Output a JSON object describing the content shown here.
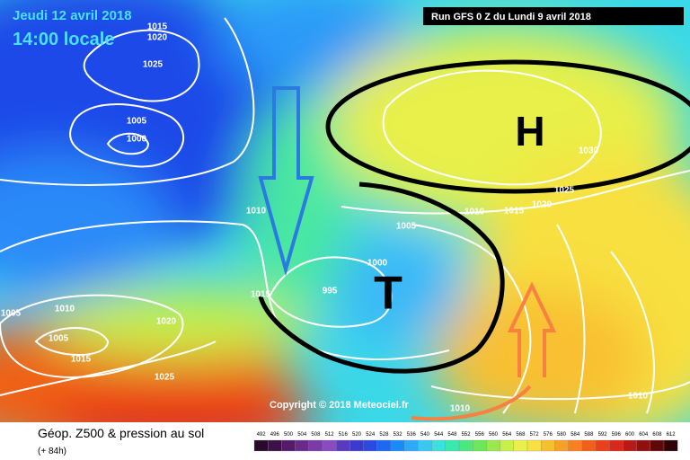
{
  "header": {
    "date": "Jeudi 12 avril 2018",
    "time": "14:00 locale",
    "run": "Run GFS 0 Z du Lundi 9 avril 2018"
  },
  "systems": {
    "high": "H",
    "low": "T"
  },
  "isobar_labels": [
    "1015",
    "1020",
    "1025",
    "1005",
    "1000",
    "1010",
    "1015",
    "995",
    "1000",
    "1005",
    "1010",
    "1015",
    "1020",
    "1025",
    "1030",
    "1005",
    "1010",
    "1005",
    "1015",
    "1020",
    "1025",
    "1010",
    "1010"
  ],
  "copyright": "Copyright © 2018 Meteociel.fr",
  "footer": {
    "title": "Géop. Z500 & pression au sol",
    "lead": "(+ 84h)"
  },
  "legend": [
    {
      "label": "492",
      "color": "#2a0a2a"
    },
    {
      "label": "496",
      "color": "#3c0f46"
    },
    {
      "label": "500",
      "color": "#551a6a"
    },
    {
      "label": "504",
      "color": "#6a2a8a"
    },
    {
      "label": "508",
      "color": "#7a3aa8"
    },
    {
      "label": "512",
      "color": "#8a4ac0"
    },
    {
      "label": "516",
      "color": "#5a3ac0"
    },
    {
      "label": "520",
      "color": "#3a3ad0"
    },
    {
      "label": "524",
      "color": "#2a4ae0"
    },
    {
      "label": "528",
      "color": "#1a6af0"
    },
    {
      "label": "532",
      "color": "#1a8af8"
    },
    {
      "label": "536",
      "color": "#2aaaf8"
    },
    {
      "label": "540",
      "color": "#3ac8f0"
    },
    {
      "label": "544",
      "color": "#3ae0e0"
    },
    {
      "label": "548",
      "color": "#3ae8b0"
    },
    {
      "label": "552",
      "color": "#4ae880"
    },
    {
      "label": "556",
      "color": "#6ae85a"
    },
    {
      "label": "560",
      "color": "#9ae84a"
    },
    {
      "label": "564",
      "color": "#c8f04a"
    },
    {
      "label": "568",
      "color": "#eaf04a"
    },
    {
      "label": "572",
      "color": "#f8e040"
    },
    {
      "label": "576",
      "color": "#f8c030"
    },
    {
      "label": "580",
      "color": "#f8a028"
    },
    {
      "label": "584",
      "color": "#f88020"
    },
    {
      "label": "588",
      "color": "#f06018"
    },
    {
      "label": "592",
      "color": "#e84018"
    },
    {
      "label": "596",
      "color": "#d82818"
    },
    {
      "label": "600",
      "color": "#b81818"
    },
    {
      "label": "604",
      "color": "#901010"
    },
    {
      "label": "608",
      "color": "#600808"
    },
    {
      "label": "612",
      "color": "#300404"
    }
  ]
}
